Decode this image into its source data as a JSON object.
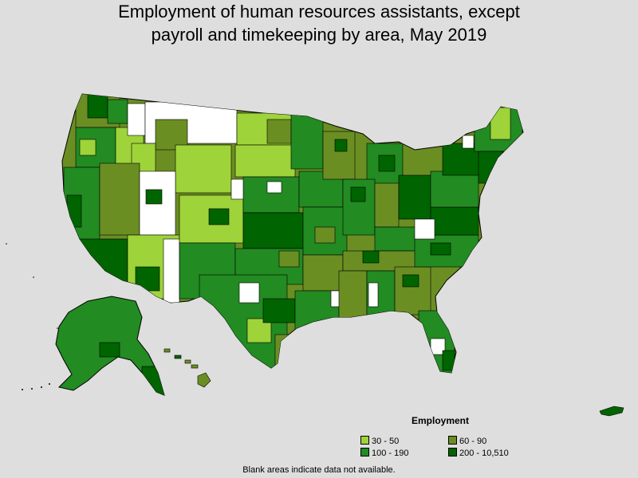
{
  "map": {
    "title_line1": "Employment of human resources assistants, except",
    "title_line2": "payroll and timekeeping by area, May 2019",
    "legend": {
      "title": "Employment",
      "items": [
        {
          "label": "30 - 50",
          "color": "#9ed33a"
        },
        {
          "label": "60 - 90",
          "color": "#6b8e23"
        },
        {
          "label": "100 - 190",
          "color": "#228b22"
        },
        {
          "label": "200 - 10,510",
          "color": "#006400"
        }
      ]
    },
    "footnote": "Blank areas indicate data not available.",
    "colors": {
      "background": "#dedede",
      "no_data": "#ffffff",
      "border": "#000000"
    }
  }
}
